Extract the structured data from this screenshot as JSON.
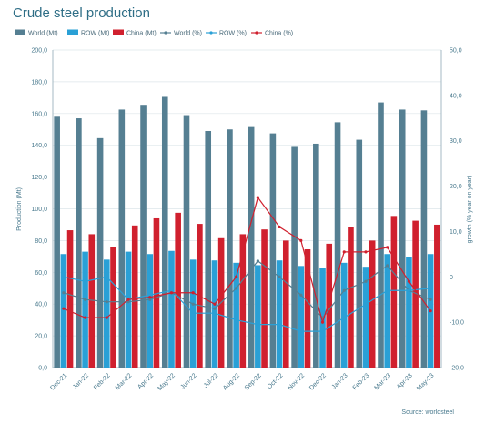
{
  "chart_data": {
    "type": "bar",
    "title": "Crude steel production",
    "source": "Source: worldsteel",
    "categories": [
      "Dec-21",
      "Jan-22",
      "Feb-22",
      "Mar-22",
      "Apr-22",
      "May-22",
      "Jun-22",
      "Jul-22",
      "Aug-22",
      "Sep-22",
      "Oct-22",
      "Nov-22",
      "Dec-22",
      "Jan-23",
      "Feb-23",
      "Mar-23",
      "Apr-23",
      "May-23"
    ],
    "ylabel": "Production (Mt)",
    "y2label": "growth (% year on year)",
    "ylim": [
      0,
      200
    ],
    "y2lim": [
      -20,
      50
    ],
    "yticks": [
      "0,0",
      "20,0",
      "40,0",
      "60,0",
      "80,0",
      "100,0",
      "120,0",
      "140,0",
      "160,0",
      "180,0",
      "200,0"
    ],
    "y2ticks": [
      "-20,0",
      "-10,0",
      "0",
      "10,0",
      "20,0",
      "30,0",
      "40,0",
      "50,0"
    ],
    "legend_position": "top",
    "grid": true,
    "bar_series": [
      {
        "name": "World (Mt)",
        "color": "#557f92",
        "values": [
          158.0,
          157.0,
          144.5,
          162.5,
          165.5,
          170.5,
          159.0,
          149.0,
          150.0,
          151.5,
          147.5,
          139.0,
          141.0,
          154.5,
          143.5,
          167.0,
          162.5,
          162.0
        ]
      },
      {
        "name": "ROW (Mt)",
        "color": "#2aa0d6",
        "values": [
          71.5,
          73.0,
          68.0,
          73.0,
          71.5,
          73.5,
          68.0,
          67.5,
          66.0,
          64.5,
          67.5,
          64.0,
          63.0,
          66.0,
          63.5,
          71.5,
          69.5,
          71.5
        ]
      },
      {
        "name": "China (Mt)",
        "color": "#d0202e",
        "values": [
          86.5,
          84.0,
          76.0,
          89.5,
          94.0,
          97.5,
          90.5,
          81.5,
          84.0,
          87.0,
          80.0,
          74.5,
          78.0,
          88.5,
          80.0,
          95.5,
          92.5,
          90.0
        ]
      }
    ],
    "line_series": [
      {
        "name": "World (%)",
        "color": "#557f92",
        "values": [
          -3.5,
          -5.0,
          -5.5,
          -5.5,
          -5.0,
          -3.5,
          -6.0,
          -7.0,
          -2.5,
          3.5,
          0.0,
          -4.0,
          -9.0,
          -3.0,
          -1.0,
          2.5,
          -3.0,
          -5.0
        ]
      },
      {
        "name": "ROW (%)",
        "color": "#2aa0d6",
        "values": [
          0.0,
          -1.0,
          0.0,
          -5.0,
          -4.0,
          -3.0,
          -8.0,
          -8.0,
          -9.5,
          -10.5,
          -10.5,
          -12.0,
          -12.0,
          -9.0,
          -6.0,
          -3.0,
          -3.0,
          -2.5
        ]
      },
      {
        "name": "China (%)",
        "color": "#d0202e",
        "values": [
          -7.0,
          -9.0,
          -9.0,
          -5.0,
          -4.5,
          -3.5,
          -3.5,
          -6.0,
          0.0,
          17.5,
          11.0,
          8.0,
          -10.0,
          5.5,
          5.5,
          6.5,
          -1.0,
          -7.5
        ]
      }
    ]
  }
}
